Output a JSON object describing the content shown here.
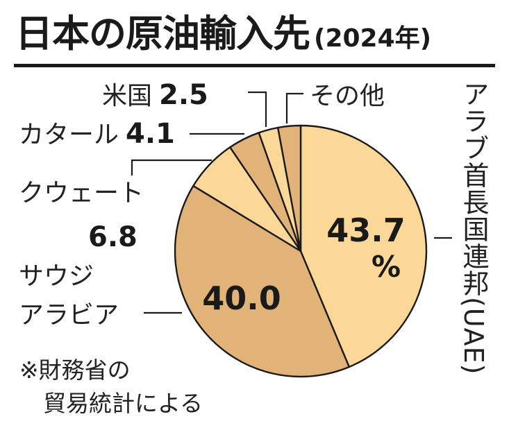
{
  "header": {
    "title": "日本の原油輸入先",
    "subtitle": "(2024年)"
  },
  "note": {
    "line1": "※財務省の",
    "line2": "貿易統計による"
  },
  "colors": {
    "light": "#FBD898",
    "dark": "#E2B378",
    "mid": "#EDC98B",
    "stroke": "#1a1a1a"
  },
  "chart_data": {
    "type": "pie",
    "unit": "%",
    "slices": [
      {
        "name": "アラブ首長国連邦(UAE)",
        "value": 43.7,
        "value_label": "43.7",
        "unit_label": "%"
      },
      {
        "name": "サウジアラビア",
        "value": 40.0,
        "value_label": "40.0"
      },
      {
        "name": "クウェート",
        "value": 6.8,
        "value_label": "6.8"
      },
      {
        "name": "カタール",
        "value": 4.1,
        "value_label": "4.1"
      },
      {
        "name": "米国",
        "value": 2.5,
        "value_label": "2.5"
      },
      {
        "name": "その他",
        "value": 2.9
      }
    ]
  }
}
